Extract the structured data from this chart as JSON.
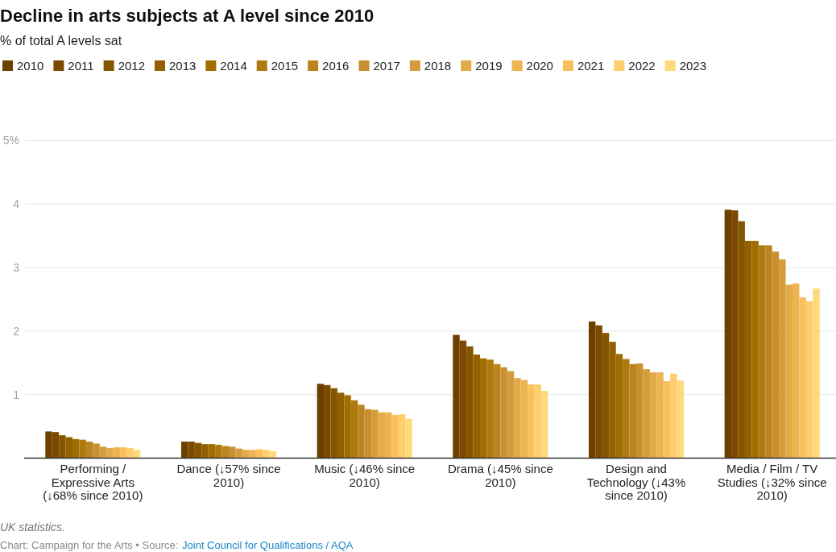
{
  "chart_data": {
    "type": "bar",
    "title": "Decline in arts subjects at A level since 2010",
    "subtitle": "% of total A levels sat",
    "categories": [
      "Performing / Expressive Arts (↓68% since 2010)",
      "Dance (↓57% since 2010)",
      "Music (↓46% since 2010)",
      "Drama (↓45% since 2010)",
      "Design and Technology (↓43% since 2010)",
      "Media / Film / TV Studies (↓32% since 2010)"
    ],
    "series": [
      {
        "name": "2010",
        "color": "#6e4000",
        "values": [
          0.42,
          0.26,
          1.17,
          1.94,
          2.15,
          3.91
        ]
      },
      {
        "name": "2011",
        "color": "#7a4a00",
        "values": [
          0.41,
          0.26,
          1.15,
          1.85,
          2.09,
          3.9
        ]
      },
      {
        "name": "2012",
        "color": "#865500",
        "values": [
          0.36,
          0.24,
          1.1,
          1.76,
          1.97,
          3.73
        ]
      },
      {
        "name": "2013",
        "color": "#926000",
        "values": [
          0.33,
          0.22,
          1.03,
          1.63,
          1.83,
          3.42
        ]
      },
      {
        "name": "2014",
        "color": "#a06e00",
        "values": [
          0.3,
          0.22,
          0.99,
          1.57,
          1.64,
          3.42
        ]
      },
      {
        "name": "2015",
        "color": "#ae7a10",
        "values": [
          0.29,
          0.21,
          0.91,
          1.55,
          1.56,
          3.35
        ]
      },
      {
        "name": "2016",
        "color": "#bc8420",
        "values": [
          0.26,
          0.19,
          0.84,
          1.48,
          1.48,
          3.35
        ]
      },
      {
        "name": "2017",
        "color": "#c89030",
        "values": [
          0.23,
          0.18,
          0.77,
          1.43,
          1.49,
          3.25
        ]
      },
      {
        "name": "2018",
        "color": "#d49c3c",
        "values": [
          0.18,
          0.15,
          0.76,
          1.37,
          1.4,
          3.13
        ]
      },
      {
        "name": "2019",
        "color": "#e2aa48",
        "values": [
          0.16,
          0.13,
          0.72,
          1.26,
          1.35,
          2.73
        ]
      },
      {
        "name": "2020",
        "color": "#edb452",
        "values": [
          0.17,
          0.13,
          0.72,
          1.23,
          1.35,
          2.75
        ]
      },
      {
        "name": "2021",
        "color": "#fbbf5c",
        "values": [
          0.17,
          0.14,
          0.68,
          1.16,
          1.21,
          2.53
        ]
      },
      {
        "name": "2022",
        "color": "#fecd6c",
        "values": [
          0.16,
          0.13,
          0.69,
          1.16,
          1.33,
          2.47
        ]
      },
      {
        "name": "2023",
        "color": "#ffda7c",
        "values": [
          0.13,
          0.11,
          0.62,
          1.06,
          1.22,
          2.67
        ]
      }
    ],
    "ylim": [
      0,
      5
    ],
    "yticks": [
      1,
      2,
      3,
      4,
      {
        "value": 5,
        "label": "5%"
      }
    ],
    "grid": "y",
    "legend": "top left",
    "annotations": [
      "UK statistics.",
      "Chart: Campaign for the Arts • Source:",
      "Joint Council for Qualifications / AQA"
    ]
  }
}
